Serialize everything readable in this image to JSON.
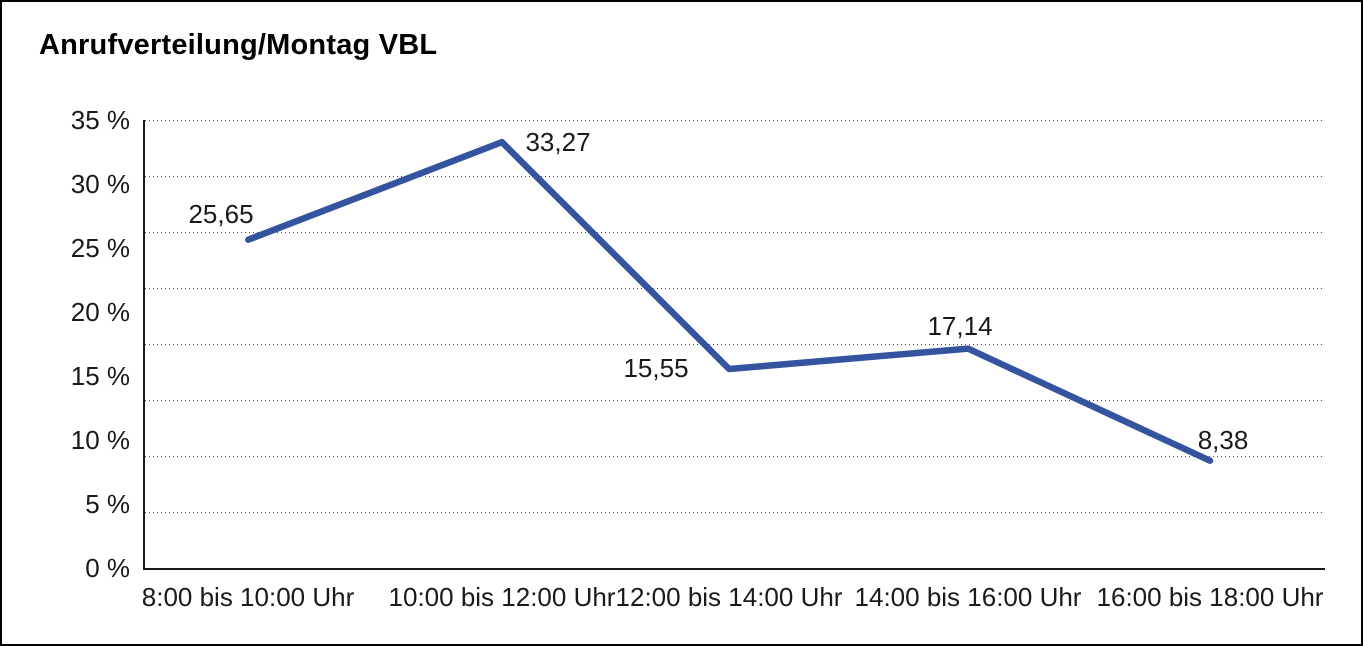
{
  "chart_data": {
    "type": "line",
    "title": "Anrufverteilung/Montag VBL",
    "categories": [
      "8:00 bis 10:00 Uhr",
      "10:00 bis 12:00 Uhr",
      "12:00 bis 14:00 Uhr",
      "14:00 bis 16:00 Uhr",
      "16:00 bis 18:00 Uhr"
    ],
    "values": [
      25.65,
      33.27,
      15.55,
      17.14,
      8.38
    ],
    "value_labels": [
      "25,65",
      "33,27",
      "15,55",
      "17,14",
      "8,38"
    ],
    "ytick_labels": [
      "35 %",
      "30 %",
      "25 %",
      "20 %",
      "15 %",
      "10 %",
      "5 %",
      "0 %"
    ],
    "ylim": [
      0,
      35
    ],
    "xlabel": "",
    "ylabel": "",
    "legend": "none",
    "grid": "horizontal-dotted",
    "line_color": "#3554A0",
    "text_color": "#1a1a1a",
    "background_color": "#ffffff"
  }
}
